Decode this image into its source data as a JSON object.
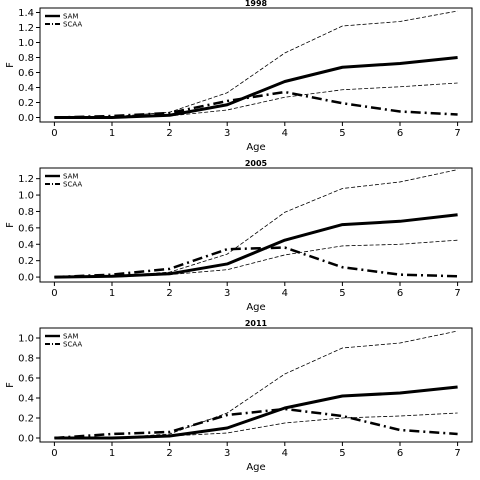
{
  "chart_data": [
    {
      "type": "line",
      "title": "1998",
      "xlabel": "Age",
      "ylabel": "F",
      "x": [
        0,
        1,
        2,
        3,
        4,
        5,
        6,
        7
      ],
      "xlim": [
        -0.25,
        7.25
      ],
      "ylim": [
        -0.06,
        1.46
      ],
      "xticks": [
        "0",
        "1",
        "2",
        "3",
        "4",
        "5",
        "6",
        "7"
      ],
      "yticks": [
        "0.0",
        "0.2",
        "0.4",
        "0.6",
        "0.8",
        "1.0",
        "1.2",
        "1.4"
      ],
      "legend_position": "top-left",
      "series": [
        {
          "name": "SAM",
          "style": "solid",
          "values": [
            0.0,
            0.0,
            0.03,
            0.17,
            0.48,
            0.67,
            0.72,
            0.8
          ]
        },
        {
          "name": "SCAA",
          "style": "dashdot",
          "values": [
            0.0,
            0.02,
            0.06,
            0.22,
            0.34,
            0.19,
            0.08,
            0.04
          ]
        },
        {
          "name": "",
          "style": "dashed-thin",
          "values": [
            0.0,
            0.01,
            0.07,
            0.33,
            0.86,
            1.22,
            1.28,
            1.42
          ]
        },
        {
          "name": "",
          "style": "dashed-thin",
          "values": [
            0.0,
            0.0,
            0.02,
            0.1,
            0.27,
            0.37,
            0.41,
            0.46
          ]
        }
      ]
    },
    {
      "type": "line",
      "title": "2005",
      "xlabel": "Age",
      "ylabel": "F",
      "x": [
        0,
        1,
        2,
        3,
        4,
        5,
        6,
        7
      ],
      "xlim": [
        -0.25,
        7.25
      ],
      "ylim": [
        -0.06,
        1.33
      ],
      "xticks": [
        "0",
        "1",
        "2",
        "3",
        "4",
        "5",
        "6",
        "7"
      ],
      "yticks": [
        "0.0",
        "0.2",
        "0.4",
        "0.6",
        "0.8",
        "1.0",
        "1.2"
      ],
      "legend_position": "top-left",
      "series": [
        {
          "name": "SAM",
          "style": "solid",
          "values": [
            0.0,
            0.01,
            0.04,
            0.16,
            0.45,
            0.64,
            0.68,
            0.76
          ]
        },
        {
          "name": "SCAA",
          "style": "dashdot",
          "values": [
            0.0,
            0.03,
            0.1,
            0.34,
            0.36,
            0.12,
            0.03,
            0.01
          ]
        },
        {
          "name": "",
          "style": "dashed-thin",
          "values": [
            0.0,
            0.01,
            0.06,
            0.28,
            0.79,
            1.08,
            1.16,
            1.31
          ]
        },
        {
          "name": "",
          "style": "dashed-thin",
          "values": [
            0.0,
            0.0,
            0.03,
            0.09,
            0.27,
            0.38,
            0.4,
            0.45
          ]
        }
      ]
    },
    {
      "type": "line",
      "title": "2011",
      "xlabel": "Age",
      "ylabel": "F",
      "x": [
        0,
        1,
        2,
        3,
        4,
        5,
        6,
        7
      ],
      "xlim": [
        -0.25,
        7.25
      ],
      "ylim": [
        -0.04,
        1.1
      ],
      "xticks": [
        "0",
        "1",
        "2",
        "3",
        "4",
        "5",
        "6",
        "7"
      ],
      "yticks": [
        "0.0",
        "0.2",
        "0.4",
        "0.6",
        "0.8",
        "1.0"
      ],
      "legend_position": "top-left",
      "series": [
        {
          "name": "SAM",
          "style": "solid",
          "values": [
            0.0,
            0.0,
            0.02,
            0.1,
            0.3,
            0.42,
            0.45,
            0.51
          ]
        },
        {
          "name": "SCAA",
          "style": "dashdot",
          "values": [
            0.0,
            0.04,
            0.06,
            0.23,
            0.29,
            0.22,
            0.08,
            0.04
          ]
        },
        {
          "name": "",
          "style": "dashed-thin",
          "values": [
            0.0,
            0.0,
            0.04,
            0.25,
            0.64,
            0.9,
            0.95,
            1.07
          ]
        },
        {
          "name": "",
          "style": "dashed-thin",
          "values": [
            0.0,
            0.0,
            0.02,
            0.05,
            0.15,
            0.2,
            0.22,
            0.25
          ]
        }
      ]
    }
  ]
}
